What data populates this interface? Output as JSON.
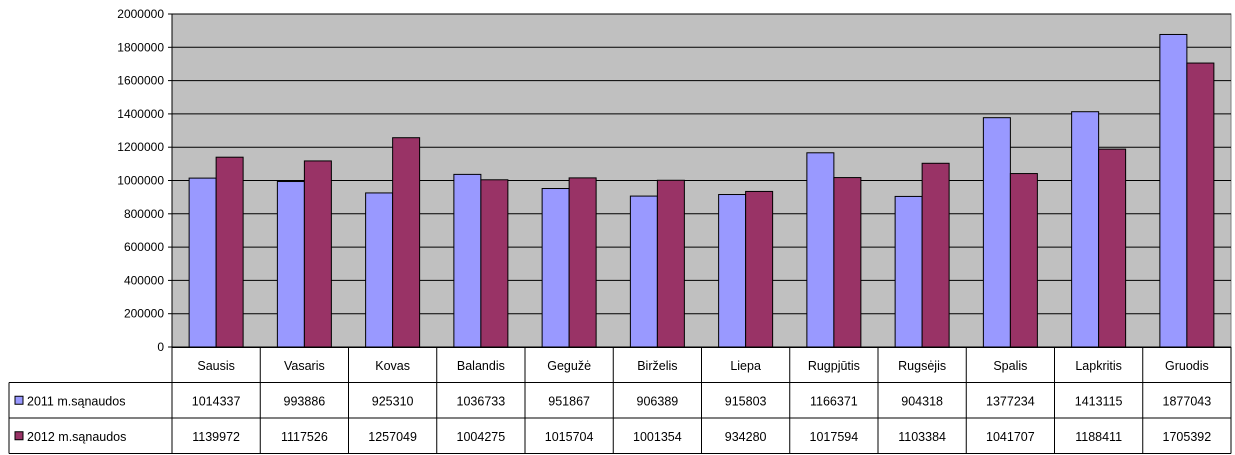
{
  "chart_data": {
    "type": "bar",
    "categories": [
      "Sausis",
      "Vasaris",
      "Kovas",
      "Balandis",
      "Gegužė",
      "Birželis",
      "Liepa",
      "Rugpjūtis",
      "Rugsėjis",
      "Spalis",
      "Lapkritis",
      "Gruodis"
    ],
    "series": [
      {
        "name": "2011 m.sąnaudos",
        "color": "#9999ff",
        "values": [
          1014337,
          993886,
          925310,
          1036733,
          951867,
          906389,
          915803,
          1166371,
          904318,
          1377234,
          1413115,
          1877043
        ]
      },
      {
        "name": "2012 m.sąnaudos",
        "color": "#993366",
        "values": [
          1139972,
          1117526,
          1257049,
          1004275,
          1015704,
          1001354,
          934280,
          1017594,
          1103384,
          1041707,
          1188411,
          1705392
        ]
      }
    ],
    "y_ticks": [
      "0",
      "200000",
      "400000",
      "600000",
      "800000",
      "1000000",
      "1200000",
      "1400000",
      "1600000",
      "1800000",
      "2000000"
    ],
    "ylim": [
      0,
      2000000
    ],
    "grid": true,
    "plot_background": "#c0c0c0",
    "legend": "data-table"
  }
}
